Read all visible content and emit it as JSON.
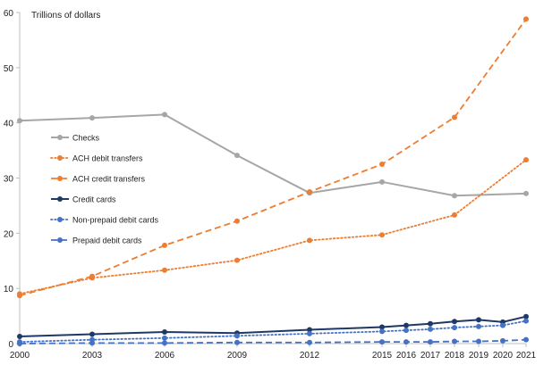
{
  "chart_data": {
    "type": "line",
    "title": "",
    "ylabel": "Trillions of dollars",
    "xlabel": "",
    "ylim": [
      0,
      60
    ],
    "y_ticks": [
      0,
      10,
      20,
      30,
      40,
      50,
      60
    ],
    "x": [
      2000,
      2003,
      2006,
      2009,
      2012,
      2015,
      2016,
      2017,
      2018,
      2019,
      2020,
      2021
    ],
    "x_labels": [
      "2000",
      "2003",
      "2006",
      "2009",
      "2012",
      "2015",
      "2016",
      "2017",
      "2018",
      "2019",
      "2020",
      "2021"
    ],
    "legend_position": "left",
    "grid": false,
    "series": [
      {
        "name": "Checks",
        "color": "#a6a6a6",
        "style": "solid",
        "x": [
          2000,
          2003,
          2006,
          2009,
          2012,
          2015,
          2018,
          2021
        ],
        "values": [
          40.4,
          40.9,
          41.5,
          34.1,
          27.3,
          29.3,
          26.8,
          27.2
        ]
      },
      {
        "name": "ACH debit transfers",
        "color": "#ed7d31",
        "style": "dotted",
        "x": [
          2000,
          2003,
          2006,
          2009,
          2012,
          2015,
          2018,
          2021
        ],
        "values": [
          9.0,
          11.9,
          13.3,
          15.1,
          18.7,
          19.7,
          23.3,
          33.3
        ]
      },
      {
        "name": "ACH credit transfers",
        "color": "#ed7d31",
        "style": "dashed",
        "x": [
          2000,
          2003,
          2006,
          2009,
          2012,
          2015,
          2018,
          2021
        ],
        "values": [
          8.7,
          12.2,
          17.8,
          22.2,
          27.5,
          32.5,
          41.0,
          58.8
        ]
      },
      {
        "name": "Credit cards",
        "color": "#1f3864",
        "style": "solid",
        "x": [
          2000,
          2003,
          2006,
          2009,
          2012,
          2015,
          2016,
          2017,
          2018,
          2019,
          2020,
          2021
        ],
        "values": [
          1.3,
          1.7,
          2.1,
          1.9,
          2.5,
          3.0,
          3.3,
          3.6,
          4.0,
          4.3,
          3.9,
          4.9
        ]
      },
      {
        "name": "Non-prepaid debit cards",
        "color": "#4472c4",
        "style": "dotted",
        "x": [
          2000,
          2003,
          2006,
          2009,
          2012,
          2015,
          2016,
          2017,
          2018,
          2019,
          2020,
          2021
        ],
        "values": [
          0.3,
          0.7,
          1.0,
          1.4,
          1.8,
          2.2,
          2.4,
          2.6,
          2.9,
          3.1,
          3.3,
          4.1
        ]
      },
      {
        "name": "Prepaid debit cards",
        "color": "#4472c4",
        "style": "dashed",
        "x": [
          2000,
          2003,
          2006,
          2009,
          2012,
          2015,
          2016,
          2017,
          2018,
          2019,
          2020,
          2021
        ],
        "values": [
          0.0,
          0.1,
          0.1,
          0.2,
          0.2,
          0.3,
          0.3,
          0.3,
          0.4,
          0.4,
          0.5,
          0.7
        ]
      }
    ]
  }
}
